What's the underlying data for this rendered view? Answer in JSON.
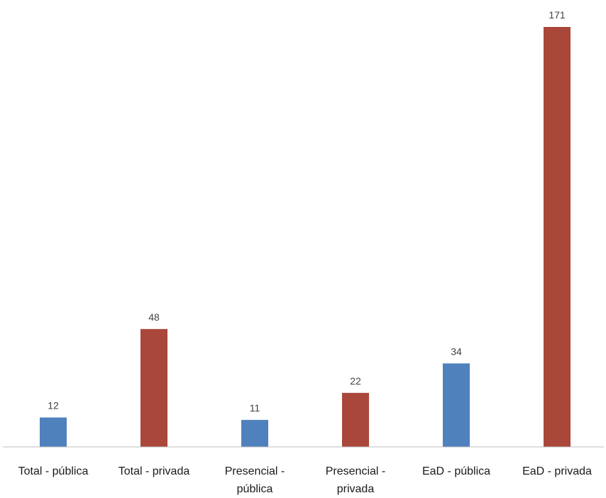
{
  "chart_data": {
    "type": "bar",
    "categories": [
      [
        "Total - pública"
      ],
      [
        "Total - privada"
      ],
      [
        "Presencial -",
        "pública"
      ],
      [
        "Presencial -",
        "privada"
      ],
      [
        "EaD - pública"
      ],
      [
        "EaD - privada"
      ]
    ],
    "values": [
      12,
      48,
      11,
      22,
      34,
      171
    ],
    "data_labels": [
      "12",
      "48",
      "11",
      "22",
      "34",
      "171"
    ],
    "bar_colors": [
      "#4f81bd",
      "#a9473a",
      "#4f81bd",
      "#a9473a",
      "#4f81bd",
      "#a9473a"
    ],
    "title": "",
    "xlabel": "",
    "ylabel": "",
    "ylim": [
      0,
      171
    ],
    "grid": false,
    "legend": "none"
  },
  "colors": {
    "publica": "#4f81bd",
    "privada": "#a9473a",
    "axis": "#bfbfbf"
  }
}
